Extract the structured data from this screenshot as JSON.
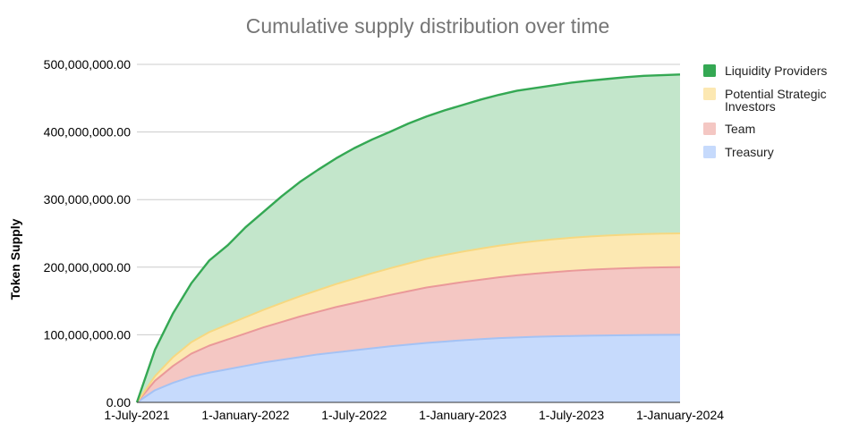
{
  "chart_data": {
    "type": "area",
    "stacked": true,
    "title": "Cumulative supply distribution over time",
    "xlabel": "",
    "ylabel": "Token Supply",
    "ylim": [
      0,
      500000000
    ],
    "yticks": [
      {
        "value": 0,
        "label": "0.00"
      },
      {
        "value": 100000000,
        "label": "100,000,000.00"
      },
      {
        "value": 200000000,
        "label": "200,000,000.00"
      },
      {
        "value": 300000000,
        "label": "300,000,000.00"
      },
      {
        "value": 400000000,
        "label": "400,000,000.00"
      },
      {
        "value": 500000000,
        "label": "500,000,000.00"
      }
    ],
    "xlim": [
      0,
      30
    ],
    "xunit": "months since 1-July-2021",
    "xticks": [
      {
        "value": 0,
        "label": "1-July-2021"
      },
      {
        "value": 6,
        "label": "1-January-2022"
      },
      {
        "value": 12,
        "label": "1-July-2022"
      },
      {
        "value": 18,
        "label": "1-January-2023"
      },
      {
        "value": 24,
        "label": "1-July-2023"
      },
      {
        "value": 30,
        "label": "1-January-2024"
      }
    ],
    "x": [
      0,
      1,
      2,
      3,
      4,
      5,
      6,
      7,
      8,
      9,
      10,
      11,
      12,
      13,
      14,
      15,
      16,
      17,
      18,
      19,
      20,
      21,
      22,
      23,
      24,
      25,
      26,
      27,
      28,
      29,
      30
    ],
    "grid": true,
    "legend_position": "right",
    "series": [
      {
        "name": "Treasury",
        "color": "#c6dafc",
        "line_color": "#a4c2f4",
        "values": [
          0,
          18000000,
          29000000,
          38000000,
          44000000,
          49000000,
          54000000,
          59000000,
          63000000,
          67000000,
          71000000,
          74000000,
          77000000,
          80000000,
          83000000,
          85500000,
          88000000,
          90000000,
          92000000,
          93500000,
          95000000,
          96000000,
          97000000,
          97700000,
          98200000,
          98700000,
          99100000,
          99400000,
          99700000,
          99900000,
          100000000
        ]
      },
      {
        "name": "Team",
        "color": "#f4c7c3",
        "line_color": "#ea9999",
        "values": [
          0,
          14000000,
          25000000,
          34000000,
          40000000,
          44000000,
          48000000,
          52000000,
          56000000,
          60000000,
          63000000,
          67000000,
          70000000,
          73000000,
          76000000,
          79000000,
          82000000,
          84000000,
          86000000,
          88000000,
          90000000,
          92000000,
          93500000,
          95000000,
          96500000,
          97500000,
          98300000,
          99000000,
          99500000,
          99800000,
          100000000
        ]
      },
      {
        "name": "Potential Strategic Investors",
        "color": "#fce8b2",
        "line_color": "#f6d881",
        "values": [
          0,
          7000000,
          13000000,
          17000000,
          20000000,
          22000000,
          24000000,
          26000000,
          28000000,
          30000000,
          32000000,
          34000000,
          36000000,
          38000000,
          39500000,
          41000000,
          42500000,
          44000000,
          45000000,
          46000000,
          46800000,
          47500000,
          48000000,
          48500000,
          48900000,
          49200000,
          49500000,
          49700000,
          49850000,
          49950000,
          50000000
        ]
      },
      {
        "name": "Liquidity Providers",
        "color": "#c3e6cb",
        "line_color": "#34a853",
        "values": [
          0,
          39000000,
          65000000,
          87000000,
          106000000,
          117000000,
          133000000,
          145000000,
          158000000,
          169000000,
          178000000,
          186000000,
          193000000,
          198000000,
          202000000,
          207000000,
          210500000,
          214000000,
          217000000,
          220500000,
          223200000,
          225500000,
          226500000,
          227800000,
          229400000,
          230600000,
          231600000,
          232900000,
          233950000,
          234350000,
          235000000
        ]
      }
    ]
  },
  "legend": {
    "items": [
      {
        "name": "Liquidity Providers",
        "lines": [
          "Liquidity Providers"
        ],
        "color": "#34a853"
      },
      {
        "name": "Potential Strategic Investors",
        "lines": [
          "Potential Strategic",
          "Investors"
        ],
        "color": "#fce8b2"
      },
      {
        "name": "Team",
        "lines": [
          "Team"
        ],
        "color": "#f4c7c3"
      },
      {
        "name": "Treasury",
        "lines": [
          "Treasury"
        ],
        "color": "#c6dafc"
      }
    ]
  }
}
